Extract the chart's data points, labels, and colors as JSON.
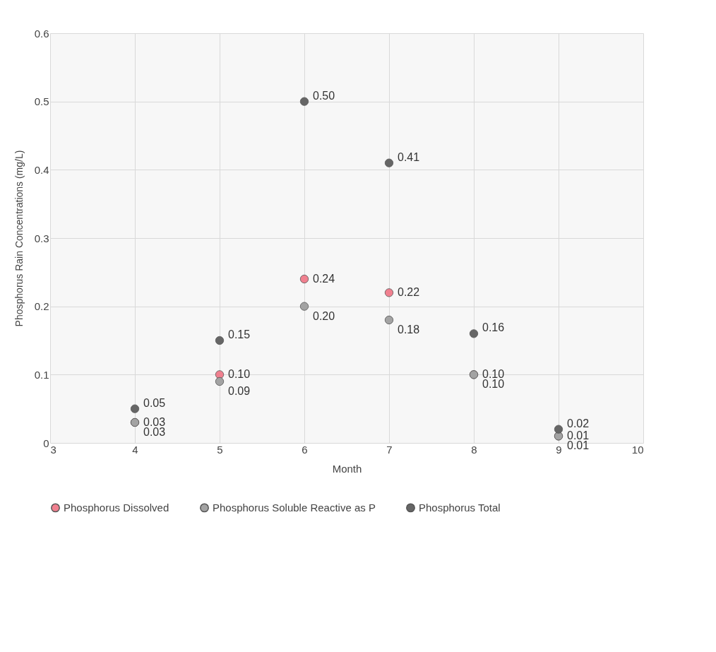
{
  "chart_data": {
    "type": "scatter",
    "xlabel": "Month",
    "ylabel": "Phosphorus Rain Concentrations (mg/L)",
    "x": [
      4,
      5,
      6,
      7,
      8,
      9
    ],
    "series": [
      {
        "name": "Phosphorus Dissolved",
        "color": "#f0808f",
        "values": [
          0.03,
          0.1,
          0.24,
          0.22,
          0.1,
          0.01
        ],
        "value_labels": [
          "0.03",
          "0.10",
          "0.24",
          "0.22",
          "0.10",
          "0.01"
        ]
      },
      {
        "name": "Phosphorus Soluble Reactive as P",
        "color": "#a3a3a3",
        "values": [
          0.03,
          0.09,
          0.2,
          0.18,
          0.1,
          0.01
        ],
        "value_labels": [
          "0.03",
          "0.09",
          "0.20",
          "0.18",
          "0.10",
          "0.01"
        ]
      },
      {
        "name": "Phosphorus Total",
        "color": "#666666",
        "values": [
          0.05,
          0.15,
          0.5,
          0.41,
          0.16,
          0.02
        ],
        "value_labels": [
          "0.05",
          "0.15",
          "0.50",
          "0.41",
          "0.16",
          "0.02"
        ]
      }
    ],
    "xlim": [
      3,
      10
    ],
    "xticks": [
      3,
      4,
      5,
      6,
      7,
      8,
      9,
      10
    ],
    "ylim": [
      0,
      0.6
    ],
    "yticks": [
      0,
      0.1,
      0.2,
      0.3,
      0.4,
      0.5,
      0.6
    ],
    "grid": true,
    "legend": "bottom",
    "marker": "circle"
  }
}
